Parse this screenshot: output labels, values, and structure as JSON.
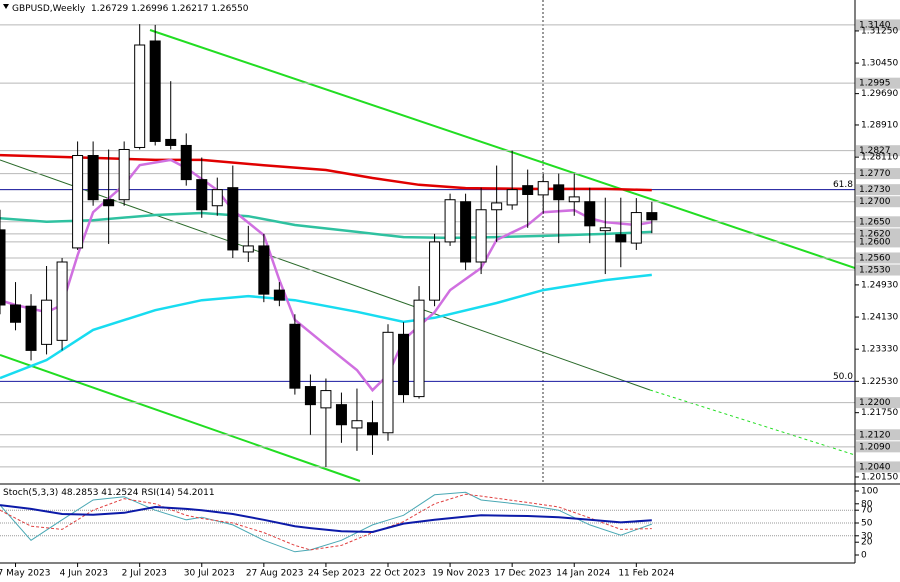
{
  "chart_data": [
    {
      "type": "candlestick",
      "title": "GBPUSD,Weekly",
      "header_labels": [
        "1.26729",
        "1.26996",
        "1.26217",
        "1.26550"
      ],
      "categories": [
        null,
        "7 May 2023",
        null,
        null,
        null,
        "4 Jun 2023",
        null,
        null,
        null,
        "2 Jul 2023",
        null,
        null,
        null,
        "30 Jul 2023",
        null,
        null,
        null,
        "27 Aug 2023",
        null,
        null,
        null,
        "24 Sep 2023",
        null,
        null,
        null,
        "22 Oct 2023",
        null,
        null,
        null,
        "19 Nov 2023",
        null,
        null,
        null,
        "17 Dec 2023",
        null,
        null,
        null,
        "14 Jan 2024",
        null,
        null,
        null,
        "11 Feb 2024",
        null
      ],
      "candles": [
        {
          "open": 1.263,
          "high": 1.268,
          "low": 1.242,
          "close": 1.2443
        },
        {
          "open": 1.2443,
          "high": 1.25,
          "low": 1.238,
          "close": 1.24
        },
        {
          "open": 1.244,
          "high": 1.247,
          "low": 1.2305,
          "close": 1.233
        },
        {
          "open": 1.2345,
          "high": 1.254,
          "low": 1.232,
          "close": 1.2455
        },
        {
          "open": 1.2355,
          "high": 1.256,
          "low": 1.233,
          "close": 1.255
        },
        {
          "open": 1.2585,
          "high": 1.285,
          "low": 1.258,
          "close": 1.2815
        },
        {
          "open": 1.2815,
          "high": 1.285,
          "low": 1.269,
          "close": 1.2705
        },
        {
          "open": 1.2705,
          "high": 1.283,
          "low": 1.2595,
          "close": 1.269
        },
        {
          "open": 1.2705,
          "high": 1.285,
          "low": 1.269,
          "close": 1.283
        },
        {
          "open": 1.2835,
          "high": 1.3142,
          "low": 1.283,
          "close": 1.309
        },
        {
          "open": 1.31,
          "high": 1.314,
          "low": 1.284,
          "close": 1.285
        },
        {
          "open": 1.2855,
          "high": 1.3,
          "low": 1.283,
          "close": 1.284
        },
        {
          "open": 1.284,
          "high": 1.287,
          "low": 1.274,
          "close": 1.2755
        },
        {
          "open": 1.2755,
          "high": 1.281,
          "low": 1.266,
          "close": 1.268
        },
        {
          "open": 1.269,
          "high": 1.276,
          "low": 1.2665,
          "close": 1.273
        },
        {
          "open": 1.2735,
          "high": 1.279,
          "low": 1.256,
          "close": 1.258
        },
        {
          "open": 1.2575,
          "high": 1.264,
          "low": 1.255,
          "close": 1.259
        },
        {
          "open": 1.259,
          "high": 1.262,
          "low": 1.245,
          "close": 1.247
        },
        {
          "open": 1.248,
          "high": 1.25,
          "low": 1.244,
          "close": 1.2455
        },
        {
          "open": 1.2395,
          "high": 1.242,
          "low": 1.222,
          "close": 1.2236
        },
        {
          "open": 1.224,
          "high": 1.227,
          "low": 1.212,
          "close": 1.2195
        },
        {
          "open": 1.2187,
          "high": 1.226,
          "low": 1.204,
          "close": 1.223
        },
        {
          "open": 1.2195,
          "high": 1.2225,
          "low": 1.21,
          "close": 1.2145
        },
        {
          "open": 1.2137,
          "high": 1.2235,
          "low": 1.208,
          "close": 1.2155
        },
        {
          "open": 1.215,
          "high": 1.2205,
          "low": 1.207,
          "close": 1.212
        },
        {
          "open": 1.2125,
          "high": 1.2395,
          "low": 1.2105,
          "close": 1.2375
        },
        {
          "open": 1.237,
          "high": 1.24,
          "low": 1.22,
          "close": 1.222
        },
        {
          "open": 1.2215,
          "high": 1.249,
          "low": 1.221,
          "close": 1.2455
        },
        {
          "open": 1.2455,
          "high": 1.262,
          "low": 1.244,
          "close": 1.26
        },
        {
          "open": 1.26,
          "high": 1.272,
          "low": 1.259,
          "close": 1.2705
        },
        {
          "open": 1.27,
          "high": 1.272,
          "low": 1.253,
          "close": 1.255
        },
        {
          "open": 1.255,
          "high": 1.2735,
          "low": 1.252,
          "close": 1.268
        },
        {
          "open": 1.268,
          "high": 1.279,
          "low": 1.26,
          "close": 1.2697
        },
        {
          "open": 1.2692,
          "high": 1.2827,
          "low": 1.268,
          "close": 1.273
        },
        {
          "open": 1.274,
          "high": 1.278,
          "low": 1.2635,
          "close": 1.2718
        },
        {
          "open": 1.2717,
          "high": 1.277,
          "low": 1.267,
          "close": 1.275
        },
        {
          "open": 1.2742,
          "high": 1.277,
          "low": 1.2597,
          "close": 1.2705
        },
        {
          "open": 1.27,
          "high": 1.277,
          "low": 1.2665,
          "close": 1.2712
        },
        {
          "open": 1.27,
          "high": 1.2735,
          "low": 1.2597,
          "close": 1.264
        },
        {
          "open": 1.2628,
          "high": 1.271,
          "low": 1.252,
          "close": 1.2635
        },
        {
          "open": 1.2618,
          "high": 1.271,
          "low": 1.2537,
          "close": 1.26
        },
        {
          "open": 1.2597,
          "high": 1.2709,
          "low": 1.258,
          "close": 1.2673
        },
        {
          "open": 1.26729,
          "high": 1.26996,
          "low": 1.26217,
          "close": 1.2655
        }
      ],
      "series": [
        {
          "color": "#e00000",
          "x": [
            0,
            6,
            10,
            13,
            17,
            21,
            24,
            27,
            30,
            34,
            36,
            39,
            42
          ],
          "values": [
            1.2816,
            1.2809,
            1.2804,
            1.2804,
            1.2791,
            1.2779,
            1.2759,
            1.2742,
            1.2734,
            1.2732,
            1.2732,
            1.2732,
            1.2729
          ]
        },
        {
          "color": "#2fc1a0",
          "x": [
            0,
            3,
            6,
            10,
            13,
            16,
            19,
            23,
            26,
            29,
            32,
            35,
            39,
            42
          ],
          "values": [
            1.2659,
            1.265,
            1.2654,
            1.2667,
            1.2672,
            1.2664,
            1.2642,
            1.2625,
            1.2612,
            1.261,
            1.2612,
            1.2615,
            1.262,
            1.2625
          ]
        },
        {
          "color": "#18dcf0",
          "x": [
            0,
            3,
            6,
            10,
            13,
            16,
            19,
            23,
            26,
            28,
            32,
            35,
            39,
            42
          ],
          "values": [
            1.2261,
            1.2306,
            1.2381,
            1.243,
            1.2455,
            1.2465,
            1.2455,
            1.2426,
            1.2401,
            1.2411,
            1.2448,
            1.248,
            1.2505,
            1.2518
          ]
        },
        {
          "color": "#d070e0",
          "x": [
            0,
            1,
            3,
            4,
            5,
            6,
            8,
            9,
            11,
            12,
            14,
            15,
            17,
            18,
            19,
            21,
            23,
            24,
            25,
            26,
            28,
            29,
            31,
            32,
            34,
            35,
            37,
            38,
            39,
            41,
            42
          ],
          "values": [
            1.2455,
            1.2443,
            1.2425,
            1.2443,
            1.2567,
            1.2674,
            1.2742,
            1.2791,
            1.2804,
            1.2784,
            1.2729,
            1.2679,
            1.2617,
            1.2505,
            1.2406,
            1.2343,
            1.2281,
            1.2231,
            1.2269,
            1.2356,
            1.2425,
            1.248,
            1.2535,
            1.2605,
            1.2642,
            1.2674,
            1.2679,
            1.2659,
            1.2649,
            1.2642,
            1.2649
          ]
        }
      ],
      "ylim": [
        1.2,
        1.3202
      ],
      "yticks": [
        {
          "value": 1.3125,
          "label": "1.31250"
        },
        {
          "value": 1.3045,
          "label": "1.30450"
        },
        {
          "value": 1.2969,
          "label": "1.29690"
        },
        {
          "value": 1.2891,
          "label": "1.28910"
        },
        {
          "value": 1.2811,
          "label": "1.28110"
        },
        {
          "value": 1.2493,
          "label": "1.24930"
        },
        {
          "value": 1.2413,
          "label": "1.24130"
        },
        {
          "value": 1.2333,
          "label": "1.23330"
        },
        {
          "value": 1.2253,
          "label": "1.22530"
        },
        {
          "value": 1.2175,
          "label": "1.21750"
        },
        {
          "value": 1.2015,
          "label": "1.20150"
        }
      ],
      "levels": [
        {
          "value": 1.314,
          "label": "1.3140"
        },
        {
          "value": 1.2995,
          "label": "1.2995"
        },
        {
          "value": 1.2827,
          "label": "1.2827"
        },
        {
          "value": 1.277,
          "label": "1.2770"
        },
        {
          "value": 1.273,
          "label": "1.2730"
        },
        {
          "value": 1.27,
          "label": "1.2700"
        },
        {
          "value": 1.265,
          "label": "1.2650"
        },
        {
          "value": 1.262,
          "label": "1.2620"
        },
        {
          "value": 1.26,
          "label": "1.2600"
        },
        {
          "value": 1.256,
          "label": "1.2560"
        },
        {
          "value": 1.253,
          "label": "1.2530"
        },
        {
          "value": 1.22,
          "label": "1.2200"
        },
        {
          "value": 1.212,
          "label": "1.2120"
        },
        {
          "value": 1.209,
          "label": "1.2090"
        },
        {
          "value": 1.204,
          "label": "1.2040"
        }
      ],
      "fib_levels": [
        {
          "value": 1.273,
          "label": "61.8"
        },
        {
          "value": 1.2253,
          "label": "50.0"
        }
      ]
    },
    {
      "type": "line",
      "x": [
        0,
        2,
        4,
        6,
        8,
        10,
        12,
        13,
        15,
        17,
        19,
        20,
        22,
        24,
        26,
        28,
        30,
        31,
        34,
        36,
        38,
        40,
        42
      ],
      "series": [
        {
          "name": "Stoch(5,3,3)",
          "color": "#4aa8b4",
          "style": "solid",
          "width": 1,
          "values": [
            78,
            23,
            55,
            86,
            91,
            70,
            55,
            59,
            47,
            23,
            5,
            8,
            23,
            47,
            62,
            94,
            98,
            86,
            78,
            70,
            47,
            31,
            48.2853
          ]
        },
        {
          "color": "#e04040",
          "style": "dashed",
          "width": 1,
          "values": [
            70,
            45,
            40,
            70,
            88,
            80,
            62,
            57,
            50,
            35,
            15,
            8,
            15,
            35,
            52,
            80,
            95,
            92,
            82,
            75,
            58,
            40,
            41.2524
          ]
        },
        {
          "name": "RSI(14)",
          "color": "#0c1aa8",
          "style": "solid",
          "width": 2,
          "values": [
            78,
            72,
            64,
            63,
            66,
            75,
            72,
            70,
            64,
            55,
            45,
            42,
            37,
            36,
            49,
            55,
            60,
            62,
            61,
            59,
            55,
            51,
            54.2011
          ]
        }
      ],
      "ylim": [
        0,
        100
      ],
      "yticks": [
        100,
        80,
        70,
        50,
        30,
        20,
        0
      ],
      "levels": [
        70,
        50,
        30
      ]
    }
  ]
}
